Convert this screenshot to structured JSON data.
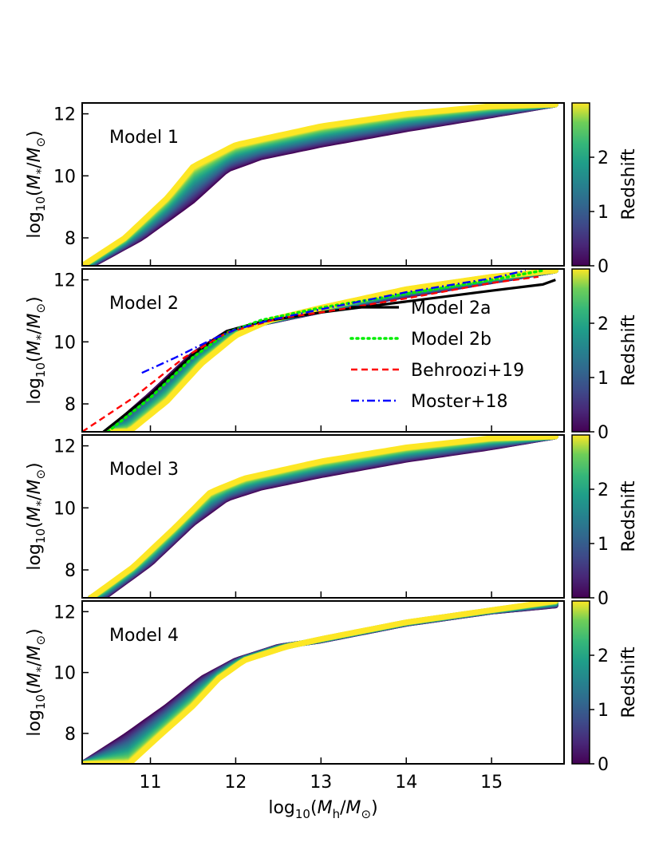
{
  "chart_data": {
    "type": "area",
    "shared_x_label": "log₁₀(M_h/M_⊙)",
    "xlabel_parts": {
      "prefix": "log",
      "sub": "10",
      "open": "(",
      "M": "M",
      "msub": "h",
      "slash": "/",
      "M2": "M",
      "msub2": "⊙",
      "close": ")"
    },
    "ylabel_parts": {
      "prefix": "log",
      "sub": "10",
      "open": "(",
      "M": "M",
      "msub": "*",
      "slash": "/",
      "M2": "M",
      "msub2": "⊙",
      "close": ")"
    },
    "xlim": [
      10.2,
      15.85
    ],
    "x_ticks": [
      "11",
      "12",
      "13",
      "14",
      "15"
    ],
    "x_tick_values": [
      11,
      12,
      13,
      14,
      15
    ],
    "colorbar": {
      "label": "Redshift",
      "range": [
        0,
        3
      ],
      "ticks": [
        "0",
        "1",
        "2"
      ],
      "tick_values": [
        0,
        1,
        2
      ],
      "colormap": "viridis"
    },
    "panels": [
      {
        "label": "Model 1",
        "ylim": [
          7.1,
          12.35
        ],
        "y_ticks": [
          "8",
          "10",
          "12"
        ],
        "y_tick_values": [
          8,
          10,
          12
        ],
        "band_low_z": [
          [
            10.3,
            7.1
          ],
          [
            10.9,
            8.0
          ],
          [
            11.5,
            9.2
          ],
          [
            11.9,
            10.2
          ],
          [
            12.3,
            10.6
          ],
          [
            13,
            11.0
          ],
          [
            14,
            11.5
          ],
          [
            15,
            11.95
          ],
          [
            15.75,
            12.3
          ]
        ],
        "band_high_z": [
          [
            10.2,
            7.1
          ],
          [
            10.7,
            8.0
          ],
          [
            11.2,
            9.3
          ],
          [
            11.5,
            10.3
          ],
          [
            12,
            11.0
          ],
          [
            13,
            11.6
          ],
          [
            14,
            12.0
          ],
          [
            15,
            12.25
          ],
          [
            15.75,
            12.3
          ]
        ]
      },
      {
        "label": "Model 2",
        "ylim": [
          7.1,
          12.35
        ],
        "y_ticks": [
          "8",
          "10",
          "12"
        ],
        "y_tick_values": [
          8,
          10,
          12
        ],
        "band_low_z": [
          [
            10.5,
            7.1
          ],
          [
            11,
            8.3
          ],
          [
            11.5,
            9.6
          ],
          [
            11.9,
            10.3
          ],
          [
            12.3,
            10.6
          ],
          [
            13,
            11.0
          ],
          [
            14,
            11.5
          ],
          [
            15,
            11.95
          ],
          [
            15.75,
            12.3
          ]
        ],
        "band_high_z": [
          [
            10.75,
            7.1
          ],
          [
            11.2,
            8.1
          ],
          [
            11.6,
            9.3
          ],
          [
            12,
            10.2
          ],
          [
            12.4,
            10.7
          ],
          [
            13,
            11.1
          ],
          [
            14,
            11.7
          ],
          [
            15,
            12.1
          ],
          [
            15.75,
            12.3
          ]
        ],
        "series": [
          {
            "name": "Model 2a",
            "style": "solid",
            "color": "#000000",
            "points": [
              [
                10.45,
                7.1
              ],
              [
                11,
                8.3
              ],
              [
                11.5,
                9.6
              ],
              [
                11.9,
                10.35
              ],
              [
                12.3,
                10.65
              ],
              [
                13,
                10.95
              ],
              [
                14,
                11.3
              ],
              [
                15,
                11.65
              ],
              [
                15.6,
                11.85
              ],
              [
                15.75,
                12.0
              ]
            ]
          },
          {
            "name": "Model 2b",
            "style": "dotted",
            "color": "#00ee00",
            "points": [
              [
                10.5,
                7.1
              ],
              [
                11,
                8.2
              ],
              [
                11.5,
                9.5
              ],
              [
                11.9,
                10.3
              ],
              [
                12.3,
                10.7
              ],
              [
                13,
                11.1
              ],
              [
                14,
                11.55
              ],
              [
                15,
                12.0
              ],
              [
                15.6,
                12.3
              ]
            ]
          },
          {
            "name": "Behroozi+19",
            "style": "dashed",
            "color": "#ff0000",
            "points": [
              [
                10.2,
                7.1
              ],
              [
                10.8,
                8.2
              ],
              [
                11.4,
                9.5
              ],
              [
                11.9,
                10.3
              ],
              [
                12.5,
                10.75
              ],
              [
                13,
                10.95
              ],
              [
                14,
                11.4
              ],
              [
                15,
                11.9
              ],
              [
                15.55,
                12.1
              ]
            ]
          },
          {
            "name": "Moster+18",
            "style": "dashdot",
            "color": "#0000ff",
            "points": [
              [
                10.9,
                9.0
              ],
              [
                11.3,
                9.5
              ],
              [
                11.7,
                10.05
              ],
              [
                12,
                10.4
              ],
              [
                12.4,
                10.7
              ],
              [
                13,
                11.05
              ],
              [
                14,
                11.6
              ],
              [
                15,
                12.05
              ],
              [
                15.4,
                12.3
              ]
            ]
          }
        ]
      },
      {
        "label": "Model 3",
        "ylim": [
          7.1,
          12.35
        ],
        "y_ticks": [
          "8",
          "10",
          "12"
        ],
        "y_tick_values": [
          8,
          10,
          12
        ],
        "band_low_z": [
          [
            10.45,
            7.1
          ],
          [
            11,
            8.2
          ],
          [
            11.5,
            9.5
          ],
          [
            11.9,
            10.3
          ],
          [
            12.3,
            10.65
          ],
          [
            13,
            11.05
          ],
          [
            14,
            11.55
          ],
          [
            15,
            11.95
          ],
          [
            15.75,
            12.3
          ]
        ],
        "band_high_z": [
          [
            10.3,
            7.1
          ],
          [
            10.8,
            8.1
          ],
          [
            11.3,
            9.4
          ],
          [
            11.7,
            10.5
          ],
          [
            12.1,
            10.95
          ],
          [
            13,
            11.5
          ],
          [
            14,
            11.95
          ],
          [
            15,
            12.25
          ],
          [
            15.75,
            12.3
          ]
        ]
      },
      {
        "label": "Model 4",
        "ylim": [
          7.0,
          12.35
        ],
        "y_ticks": [
          "8",
          "10",
          "12"
        ],
        "y_tick_values": [
          8,
          10,
          12
        ],
        "band_low_z": [
          [
            10.2,
            7.0
          ],
          [
            10.7,
            7.9
          ],
          [
            11.2,
            8.9
          ],
          [
            11.6,
            9.8
          ],
          [
            12,
            10.4
          ],
          [
            12.5,
            10.85
          ],
          [
            13,
            11.05
          ],
          [
            14,
            11.6
          ],
          [
            15,
            12.0
          ],
          [
            15.75,
            12.2
          ]
        ],
        "band_high_z": [
          [
            10.75,
            7.0
          ],
          [
            11.1,
            7.9
          ],
          [
            11.5,
            8.9
          ],
          [
            11.8,
            9.8
          ],
          [
            12.1,
            10.4
          ],
          [
            12.6,
            10.85
          ],
          [
            13,
            11.1
          ],
          [
            14,
            11.65
          ],
          [
            15,
            12.05
          ],
          [
            15.75,
            12.35
          ]
        ]
      }
    ],
    "legend": {
      "placement": "inside panel 2, lower-right",
      "entries": [
        "Model 2a",
        "Model 2b",
        "Behroozi+19",
        "Moster+18"
      ]
    }
  }
}
